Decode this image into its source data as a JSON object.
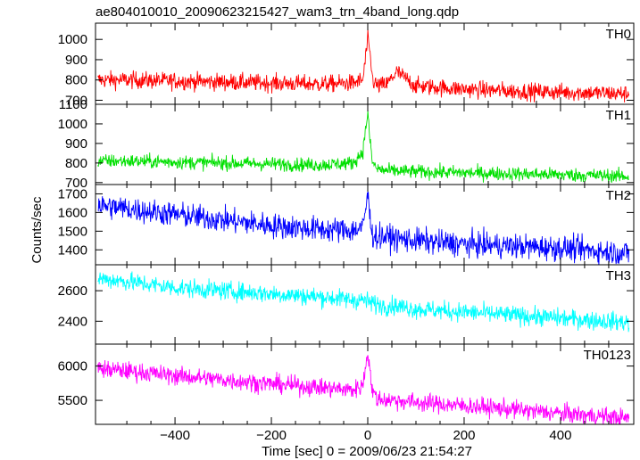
{
  "chart_data": {
    "type": "line",
    "title": "ae804010010_20090623215427_wam3_trn_4band_long.qdp",
    "xlabel": "Time [sec] 0 = 2009/06/23 21:54:27",
    "ylabel": "Counts/sec",
    "xlim": [
      -565,
      552
    ],
    "x_ticks": [
      -400,
      -200,
      0,
      200,
      400
    ],
    "x_tick_labels": [
      "−400",
      "−200",
      "0",
      "200",
      "400"
    ],
    "panels": [
      {
        "name": "TH0",
        "color": "#ff0000",
        "ylim": [
          680,
          1080
        ],
        "yticks": [
          700,
          800,
          900,
          1000
        ],
        "series": [
          {
            "x": [
              -560,
              -500,
              -400,
              -300,
              -200,
              -100,
              -30,
              -10,
              0,
              5,
              10,
              20,
              40,
              60,
              100,
              200,
              300,
              400,
              500,
              550
            ],
            "y": [
              800,
              800,
              795,
              790,
              785,
              780,
              785,
              800,
              1000,
              920,
              800,
              770,
              780,
              840,
              770,
              755,
              745,
              740,
              735,
              730
            ]
          }
        ]
      },
      {
        "name": "TH1",
        "color": "#00e000",
        "ylim": [
          690,
          1100
        ],
        "yticks": [
          700,
          800,
          900,
          1000,
          1100
        ],
        "series": [
          {
            "x": [
              -560,
              -500,
              -400,
              -300,
              -200,
              -100,
              -30,
              -10,
              0,
              5,
              10,
              20,
              40,
              60,
              100,
              200,
              300,
              400,
              500,
              550
            ],
            "y": [
              810,
              810,
              805,
              800,
              795,
              790,
              800,
              860,
              1060,
              900,
              800,
              770,
              760,
              760,
              755,
              750,
              745,
              740,
              735,
              730
            ]
          }
        ]
      },
      {
        "name": "TH2",
        "color": "#0000ff",
        "ylim": [
          1320,
          1750
        ],
        "yticks": [
          1400,
          1500,
          1600,
          1700
        ],
        "series": [
          {
            "x": [
              -560,
              -500,
              -400,
              -300,
              -200,
              -100,
              -30,
              -10,
              0,
              5,
              10,
              20,
              40,
              60,
              100,
              200,
              300,
              400,
              500,
              550
            ],
            "y": [
              1640,
              1620,
              1590,
              1560,
              1530,
              1510,
              1505,
              1520,
              1700,
              1560,
              1480,
              1470,
              1470,
              1460,
              1450,
              1430,
              1420,
              1410,
              1390,
              1380
            ]
          }
        ]
      },
      {
        "name": "TH3",
        "color": "#00ffff",
        "ylim": [
          2250,
          2770
        ],
        "yticks": [
          2400,
          2600
        ],
        "series": [
          {
            "x": [
              -560,
              -500,
              -400,
              -300,
              -200,
              -100,
              -30,
              -10,
              0,
              5,
              10,
              20,
              40,
              60,
              100,
              200,
              300,
              400,
              500,
              550
            ],
            "y": [
              2680,
              2660,
              2620,
              2600,
              2580,
              2560,
              2540,
              2540,
              2530,
              2520,
              2520,
              2510,
              2500,
              2500,
              2480,
              2460,
              2440,
              2420,
              2400,
              2390
            ]
          }
        ]
      },
      {
        "name": "TH0123",
        "color": "#ff00ff",
        "ylim": [
          5150,
          6320
        ],
        "yticks": [
          5500,
          6000
        ],
        "series": [
          {
            "x": [
              -560,
              -500,
              -400,
              -300,
              -200,
              -100,
              -30,
              -10,
              0,
              5,
              10,
              20,
              40,
              60,
              100,
              200,
              300,
              400,
              500,
              550
            ],
            "y": [
              5960,
              5930,
              5860,
              5800,
              5740,
              5690,
              5650,
              5720,
              6230,
              5900,
              5620,
              5520,
              5510,
              5500,
              5470,
              5420,
              5370,
              5310,
              5260,
              5230
            ]
          }
        ]
      }
    ]
  }
}
